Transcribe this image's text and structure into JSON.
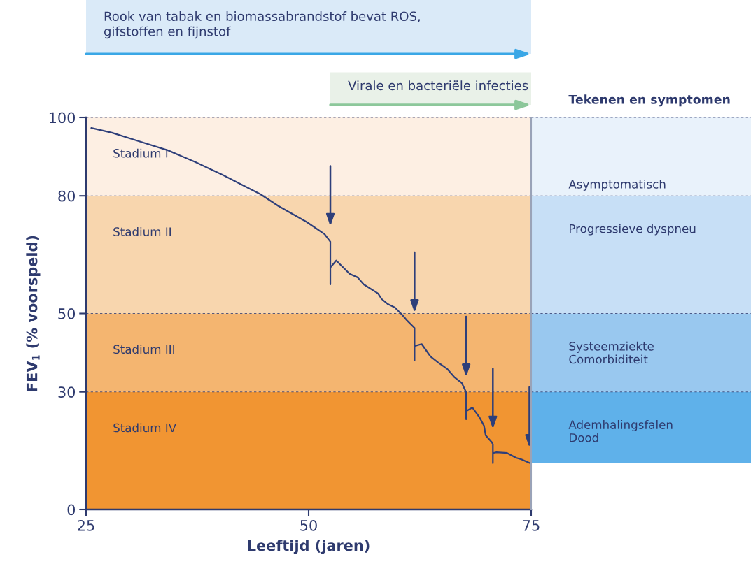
{
  "chart_data": [
    {
      "type": "line",
      "xlabel": "Leeftijd (jaren)",
      "ylabel": "FEV$_{1}$ (% voorspeld)",
      "annotations": [
        "Rook van tabak en biomassabrandstof bevat ROS,\ngifstoffen en fijnstof",
        "Virale en bacteriële infecties"
      ],
      "xlim": [
        25,
        75
      ],
      "xticks": [
        25,
        50,
        75
      ],
      "ylim": [
        0,
        100
      ],
      "yticks": [
        0,
        30,
        50,
        80,
        100
      ],
      "grid": "y",
      "legend": false,
      "marker": "none",
      "line_style": "solid",
      "bands": [
        {
          "axis": "y",
          "from": 80,
          "to": 100,
          "label": "Stadium I",
          "color": "#fdefe3"
        },
        {
          "axis": "y",
          "from": 50,
          "to": 80,
          "label": "Stadium II",
          "color": "#f8d6ae"
        },
        {
          "axis": "y",
          "from": 30,
          "to": 50,
          "label": "Stadium III",
          "color": "#f4b570"
        },
        {
          "axis": "y",
          "from": 0,
          "to": 30,
          "label": "Stadium IV",
          "color": "#f19532"
        }
      ],
      "series": [
        {
          "color": "#2e3f7a",
          "x": [
            25.6,
            27.9,
            31.1,
            34.2,
            37.3,
            40.3,
            42.6,
            44.6,
            46.6,
            49.8,
            51.8,
            52.44,
            52.44,
            52.44,
            53.1,
            54.6,
            55.5,
            56.2,
            57.8,
            58.2,
            58.9,
            59.7,
            60.5,
            61.1,
            61.9,
            61.9,
            61.9,
            62.7,
            63.7,
            64.5,
            65.6,
            66.4,
            67.2,
            67.7,
            67.7,
            67.7,
            68.4,
            69.2,
            69.7,
            69.9,
            70.6,
            70.7,
            70.7,
            70.7,
            71.1,
            72.3,
            73.3,
            73.9,
            74.8
          ],
          "values": [
            97.3,
            96.1,
            93.8,
            91.6,
            88.6,
            85.4,
            82.7,
            80.4,
            77.4,
            73.3,
            70.2,
            68.3,
            57.4,
            61.7,
            63.5,
            60.1,
            59.2,
            57.4,
            55.1,
            53.7,
            52.4,
            51.5,
            49.7,
            48.1,
            46.3,
            38.0,
            41.7,
            42.2,
            39.0,
            37.6,
            35.8,
            33.7,
            32.3,
            29.9,
            23.0,
            25.1,
            26.0,
            23.5,
            21.4,
            18.9,
            17.1,
            16.6,
            11.8,
            14.4,
            14.6,
            14.4,
            13.2,
            12.8,
            11.9
          ]
        }
      ]
    },
    {
      "type": "other",
      "title": "Tekenen en symptomen",
      "annotations": [
        "Asymptomatisch",
        "Progressieve dyspneu",
        "Systeemziekte\nComorbiditeit",
        "Ademhalingsfalen\nDood"
      ]
    }
  ]
}
